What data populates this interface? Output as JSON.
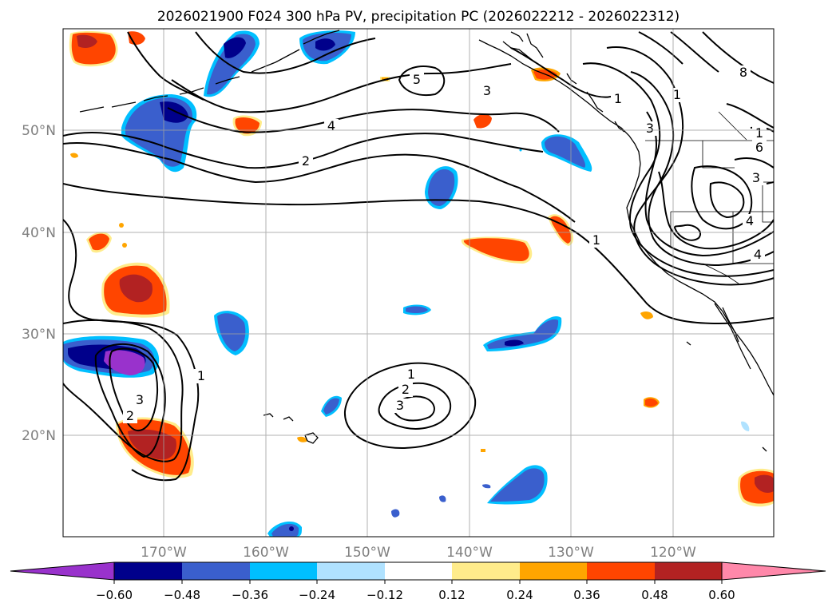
{
  "title": "2026021900 F024 300 hPa PV, precipitation PC (2026022212 - 2026022312)",
  "axes": {
    "lat_labels": [
      "50°N",
      "40°N",
      "30°N",
      "20°N"
    ],
    "lon_labels": [
      "170°W",
      "160°W",
      "150°W",
      "140°W",
      "130°W",
      "120°W"
    ]
  },
  "colorbar": {
    "ticks": [
      "−0.60",
      "−0.48",
      "−0.36",
      "−0.24",
      "−0.12",
      "0.12",
      "0.24",
      "0.36",
      "0.48",
      "0.60"
    ],
    "colors": [
      "#9932cc",
      "#00008b",
      "#3a5fcd",
      "#00bfff",
      "#b0e2ff",
      "#ffffff",
      "#ffec8b",
      "#ffa500",
      "#ff4500",
      "#b22222",
      "#ff88aa"
    ]
  },
  "contour_labels": [
    "5",
    "3",
    "1",
    "4",
    "2",
    "8",
    "6",
    "3",
    "1",
    "3",
    "4",
    "1",
    "1",
    "4",
    "1",
    "2",
    "3",
    "1",
    "2",
    "3"
  ],
  "colors": {
    "dark_purple": "#9932cc",
    "navy": "#00008b",
    "royal_blue": "#3a5fcd",
    "sky_blue": "#00bfff",
    "light_blue": "#b0e2ff",
    "pale_yellow": "#ffec8b",
    "orange": "#ffa500",
    "red_orange": "#ff4500",
    "firebrick": "#b22222",
    "pink": "#ff88aa"
  }
}
